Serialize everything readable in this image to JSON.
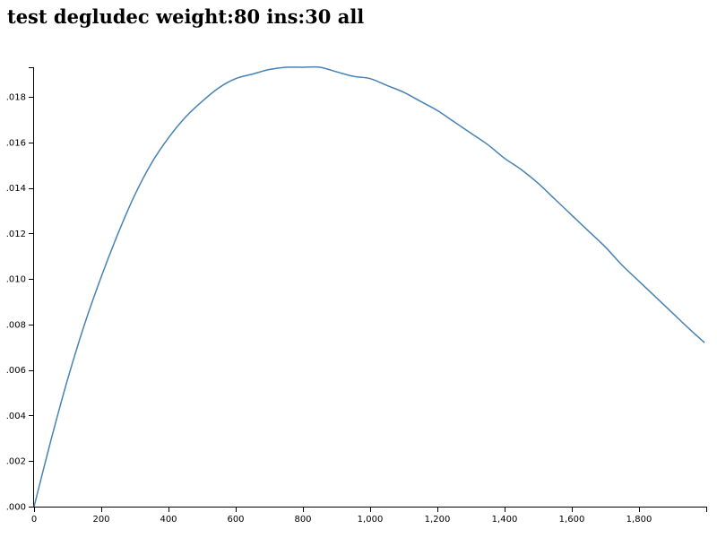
{
  "title": "test degludec weight:80 ins:30 all",
  "chart_data": {
    "type": "line",
    "title": "test degludec weight:80 ins:30 all",
    "xlabel": "",
    "ylabel": "",
    "xlim": [
      0,
      2000
    ],
    "ylim": [
      0,
      0.0193
    ],
    "x_ticks": [
      0,
      200,
      400,
      600,
      800,
      1000,
      1200,
      1400,
      1600,
      1800
    ],
    "x_tick_labels": [
      "0",
      "200",
      "400",
      "600",
      "800",
      "1,000",
      "1,200",
      "1,400",
      "1,600",
      "1,800"
    ],
    "y_ticks": [
      0,
      0.002,
      0.004,
      0.006,
      0.008,
      0.01,
      0.012,
      0.014,
      0.016,
      0.018
    ],
    "y_tick_labels": [
      ".000",
      ".002",
      ".004",
      ".006",
      ".008",
      ".010",
      ".012",
      ".014",
      ".016",
      ".018"
    ],
    "grid": false,
    "series": [
      {
        "color": "#4682b4",
        "x": [
          0,
          50,
          100,
          150,
          200,
          250,
          300,
          350,
          400,
          450,
          500,
          550,
          600,
          650,
          700,
          750,
          800,
          850,
          900,
          950,
          1000,
          1050,
          1100,
          1150,
          1200,
          1250,
          1300,
          1350,
          1400,
          1450,
          1500,
          1550,
          1600,
          1650,
          1700,
          1750,
          1800,
          1850,
          1900,
          1950,
          1995
        ],
        "y": [
          0,
          0.0029,
          0.0056,
          0.008,
          0.0101,
          0.012,
          0.0137,
          0.0151,
          0.0162,
          0.0171,
          0.0178,
          0.0184,
          0.0188,
          0.019,
          0.0192,
          0.0193,
          0.0193,
          0.0193,
          0.0191,
          0.0189,
          0.0188,
          0.0185,
          0.0182,
          0.0178,
          0.0174,
          0.0169,
          0.0164,
          0.0159,
          0.0153,
          0.0148,
          0.0142,
          0.0135,
          0.0128,
          0.0121,
          0.0114,
          0.0106,
          0.0099,
          0.0092,
          0.0085,
          0.0078,
          0.0072
        ]
      }
    ]
  }
}
